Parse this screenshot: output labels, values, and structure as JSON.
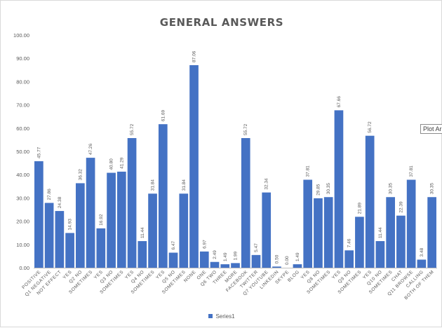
{
  "chart_data": {
    "type": "bar",
    "title": "GENERAL ANSWERS",
    "xlabel": "",
    "ylabel": "",
    "ylim": [
      0,
      100
    ],
    "yticks": [
      "0.00",
      "10.00",
      "20.00",
      "30.00",
      "40.00",
      "50.00",
      "60.00",
      "70.00",
      "80.00",
      "90.00",
      "100.00"
    ],
    "grid": false,
    "legend_position": "bottom",
    "categories": [
      "POSITIVE",
      "Q1 NEGATIVE",
      "NOT EFFECT",
      "YES",
      "Q2 NO",
      "SOMETIMES",
      "YES",
      "Q3 NO",
      "SOMETIMES",
      "YES",
      "Q4 NO",
      "SOMETIMES",
      "YES",
      "Q5 NO",
      "SOMETIMES",
      "NONE",
      "ONE",
      "Q6 TWO",
      "THREE",
      "MORE",
      "FACEBOOK",
      "TWITTER",
      "Q7 YOUTUBE",
      "LINKEDIN",
      "SKYPE",
      "BLOG",
      "YES",
      "Q8 NO",
      "SOMETIMES",
      "YES",
      "Q9 NO",
      "SOMETIMES",
      "YES",
      "Q10 NO",
      "SOMETIMES",
      "CHAT",
      "Q11 BROWSE",
      "CALLING",
      "BOTH OF THEM"
    ],
    "series": [
      {
        "name": "Series1",
        "color": "#4472c4",
        "values": [
          45.77,
          27.86,
          24.38,
          14.93,
          36.32,
          47.26,
          16.92,
          40.8,
          41.29,
          55.72,
          11.44,
          31.84,
          61.69,
          6.47,
          31.84,
          87.06,
          6.97,
          2.49,
          1.49,
          1.99,
          55.72,
          5.47,
          32.34,
          0.5,
          0.0,
          1.49,
          37.81,
          29.85,
          30.35,
          67.66,
          7.46,
          21.89,
          56.72,
          11.44,
          30.35,
          22.39,
          37.81,
          3.48,
          30.35
        ],
        "labels": [
          "45.77",
          "27.86",
          "24.38",
          "14.93",
          "36.32",
          "47.26",
          "16.92",
          "40.80",
          "41.29",
          "55.72",
          "11.44",
          "31.84",
          "61.69",
          "6.47",
          "31.84",
          "87.06",
          "6.97",
          "2.49",
          "1.49",
          "1.99",
          "55.72",
          "5.47",
          "32.34",
          "0.50",
          "0.00",
          "1.49",
          "37.81",
          "29.85",
          "30.35",
          "67.66",
          "7.46",
          "21.89",
          "56.72",
          "11.44",
          "30.35",
          "22.39",
          "37.81",
          "3.48",
          "30.35"
        ]
      }
    ]
  },
  "tooltip_text": "Plot Are",
  "legend_label": "Series1",
  "colors": {
    "bar": "#4472c4",
    "text": "#595959",
    "axis": "#bfbfbf"
  }
}
